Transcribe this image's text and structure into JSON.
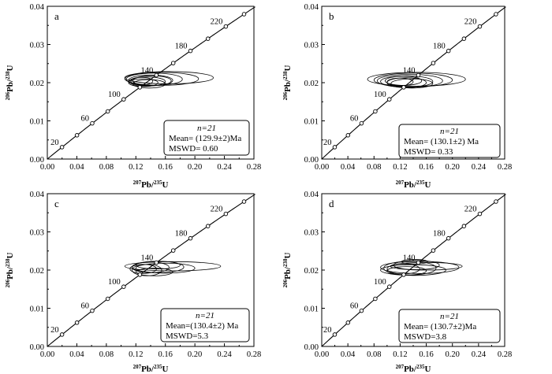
{
  "chart_data": [
    {
      "type": "concordia",
      "panel": "a",
      "xlabel_sup": "207",
      "xlabel_main": "Pb/",
      "xlabel_sup2": "235",
      "xlabel_tail": "U",
      "ylabel": "206Pb/238U",
      "xlim": [
        0.0,
        0.28
      ],
      "ylim": [
        0.0,
        0.04
      ],
      "xticks": [
        "0.00",
        "0.04",
        "0.08",
        "0.12",
        "0.16",
        "0.20",
        "0.24",
        "0.28"
      ],
      "yticks": [
        "0.00",
        "0.01",
        "0.02",
        "0.03",
        "0.04"
      ],
      "age_labels": [
        "20",
        "60",
        "100",
        "140",
        "180",
        "220"
      ],
      "n": "n=21",
      "mean": "Mean= (129.9±2)Ma",
      "mswd": "MSWD= 0.60",
      "ellipses": [
        {
          "cx": 0.135,
          "cy": 0.0203,
          "rx": 0.025,
          "ry": 0.0012
        },
        {
          "cx": 0.14,
          "cy": 0.0206,
          "rx": 0.03,
          "ry": 0.0014
        },
        {
          "cx": 0.145,
          "cy": 0.0209,
          "rx": 0.038,
          "ry": 0.0016
        },
        {
          "cx": 0.155,
          "cy": 0.021,
          "rx": 0.05,
          "ry": 0.0017
        },
        {
          "cx": 0.165,
          "cy": 0.0213,
          "rx": 0.06,
          "ry": 0.0016
        },
        {
          "cx": 0.13,
          "cy": 0.02,
          "rx": 0.02,
          "ry": 0.001
        },
        {
          "cx": 0.138,
          "cy": 0.0197,
          "rx": 0.022,
          "ry": 0.0011
        },
        {
          "cx": 0.142,
          "cy": 0.0205,
          "rx": 0.026,
          "ry": 0.0013
        },
        {
          "cx": 0.128,
          "cy": 0.0204,
          "rx": 0.015,
          "ry": 0.001
        }
      ]
    },
    {
      "type": "concordia",
      "panel": "b",
      "xlabel_sup": "207",
      "xlabel_main": "Pb/",
      "xlabel_sup2": "235",
      "xlabel_tail": "U",
      "ylabel": "206Pb/238U",
      "xlim": [
        0.0,
        0.28
      ],
      "ylim": [
        0.0,
        0.04
      ],
      "xticks": [
        "0.00",
        "0.04",
        "0.08",
        "0.12",
        "0.16",
        "0.20",
        "0.24",
        "0.28"
      ],
      "yticks": [
        "0.00",
        "0.01",
        "0.02",
        "0.03",
        "0.04"
      ],
      "age_labels": [
        "20",
        "60",
        "100",
        "140",
        "180",
        "220"
      ],
      "n": "n=21",
      "mean": "Mean= (130.1±2) Ma",
      "mswd": "MSWD= 0.33",
      "ellipses": [
        {
          "cx": 0.13,
          "cy": 0.0203,
          "rx": 0.04,
          "ry": 0.0015
        },
        {
          "cx": 0.135,
          "cy": 0.0205,
          "rx": 0.05,
          "ry": 0.0017
        },
        {
          "cx": 0.14,
          "cy": 0.0207,
          "rx": 0.06,
          "ry": 0.0018
        },
        {
          "cx": 0.145,
          "cy": 0.0209,
          "rx": 0.075,
          "ry": 0.0018
        },
        {
          "cx": 0.13,
          "cy": 0.02,
          "rx": 0.03,
          "ry": 0.0013
        },
        {
          "cx": 0.125,
          "cy": 0.0205,
          "rx": 0.028,
          "ry": 0.0012
        },
        {
          "cx": 0.138,
          "cy": 0.0198,
          "rx": 0.032,
          "ry": 0.0012
        },
        {
          "cx": 0.12,
          "cy": 0.0202,
          "rx": 0.02,
          "ry": 0.001
        }
      ]
    },
    {
      "type": "concordia",
      "panel": "c",
      "xlabel_sup": "207",
      "xlabel_main": "Pb/",
      "xlabel_sup2": "235",
      "xlabel_tail": "U",
      "ylabel": "206Pb/238U",
      "xlim": [
        0.0,
        0.28
      ],
      "ylim": [
        0.0,
        0.04
      ],
      "xticks": [
        "0.00",
        "0.04",
        "0.08",
        "0.12",
        "0.16",
        "0.20",
        "0.24",
        "0.28"
      ],
      "yticks": [
        "0.00",
        "0.01",
        "0.02",
        "0.03",
        "0.04"
      ],
      "age_labels": [
        "20",
        "60",
        "100",
        "140",
        "180",
        "220"
      ],
      "n": "n=21",
      "mean": "Mean=(130.4±2) Ma",
      "mswd": "MSWD=5.3",
      "ellipses": [
        {
          "cx": 0.14,
          "cy": 0.0207,
          "rx": 0.025,
          "ry": 0.0014
        },
        {
          "cx": 0.15,
          "cy": 0.0208,
          "rx": 0.035,
          "ry": 0.0015
        },
        {
          "cx": 0.17,
          "cy": 0.021,
          "rx": 0.065,
          "ry": 0.0012
        },
        {
          "cx": 0.135,
          "cy": 0.02,
          "rx": 0.02,
          "ry": 0.0015
        },
        {
          "cx": 0.145,
          "cy": 0.0195,
          "rx": 0.025,
          "ry": 0.001
        },
        {
          "cx": 0.15,
          "cy": 0.0213,
          "rx": 0.03,
          "ry": 0.001
        },
        {
          "cx": 0.13,
          "cy": 0.0203,
          "rx": 0.018,
          "ry": 0.0012
        },
        {
          "cx": 0.16,
          "cy": 0.0205,
          "rx": 0.04,
          "ry": 0.0013
        }
      ]
    },
    {
      "type": "concordia",
      "panel": "d",
      "xlabel_sup": "207",
      "xlabel_main": "Pb/",
      "xlabel_sup2": "235",
      "xlabel_tail": "U",
      "ylabel": "206Pb/238U",
      "xlim": [
        0.0,
        0.28
      ],
      "ylim": [
        0.0,
        0.04
      ],
      "xticks": [
        "0.00",
        "0.04",
        "0.08",
        "0.12",
        "0.16",
        "0.20",
        "0.24",
        "0.28"
      ],
      "yticks": [
        "0.00",
        "0.01",
        "0.02",
        "0.03",
        "0.04"
      ],
      "age_labels": [
        "20",
        "60",
        "100",
        "140",
        "180",
        "220"
      ],
      "n": "n=21",
      "mean": "Mean= (130.7±2)Ma",
      "mswd": "MSWD=3.8",
      "ellipses": [
        {
          "cx": 0.135,
          "cy": 0.0205,
          "rx": 0.04,
          "ry": 0.0018
        },
        {
          "cx": 0.15,
          "cy": 0.0207,
          "rx": 0.06,
          "ry": 0.0016
        },
        {
          "cx": 0.14,
          "cy": 0.02,
          "rx": 0.05,
          "ry": 0.0014
        },
        {
          "cx": 0.145,
          "cy": 0.0213,
          "rx": 0.035,
          "ry": 0.0012
        },
        {
          "cx": 0.13,
          "cy": 0.0198,
          "rx": 0.03,
          "ry": 0.0011
        },
        {
          "cx": 0.16,
          "cy": 0.021,
          "rx": 0.055,
          "ry": 0.001
        },
        {
          "cx": 0.125,
          "cy": 0.0203,
          "rx": 0.025,
          "ry": 0.0013
        },
        {
          "cx": 0.142,
          "cy": 0.0222,
          "rx": 0.02,
          "ry": 0.0006
        }
      ]
    }
  ]
}
